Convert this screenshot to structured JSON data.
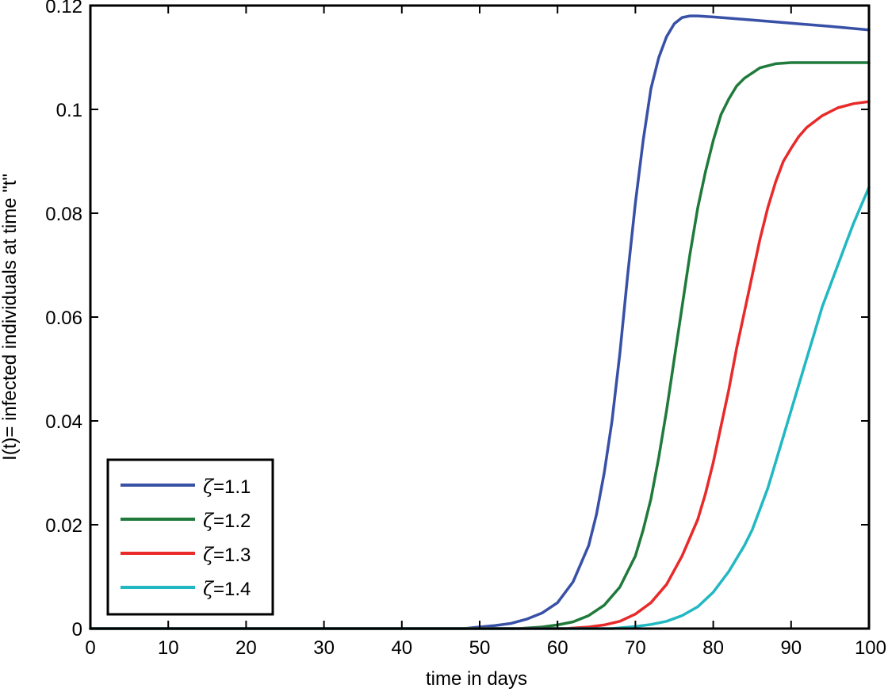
{
  "chart_data": {
    "type": "line",
    "title": "",
    "xlabel": "time in days",
    "ylabel": "I(t)= infected individuals at time \"t\"",
    "xlim": [
      0,
      100
    ],
    "ylim": [
      0,
      0.12
    ],
    "xticks": [
      0,
      10,
      20,
      30,
      40,
      50,
      60,
      70,
      80,
      90,
      100
    ],
    "xtick_labels": [
      "0",
      "10",
      "20",
      "30",
      "40",
      "50",
      "60",
      "70",
      "80",
      "90",
      "100"
    ],
    "yticks": [
      0,
      0.02,
      0.04,
      0.06,
      0.08,
      0.1,
      0.12
    ],
    "ytick_labels": [
      "0",
      "0.02",
      "0.04",
      "0.06",
      "0.08",
      "0.1",
      "0.12"
    ],
    "grid": false,
    "legend_position": "bottom-left",
    "series": [
      {
        "name": "ζ=1.1",
        "symbol": "ζ",
        "value_label": "=1.1",
        "color": "#3850a6",
        "x": [
          0,
          48,
          50,
          52,
          54,
          56,
          58,
          60,
          62,
          64,
          65,
          66,
          67,
          68,
          69,
          70,
          71,
          72,
          73,
          74,
          75,
          76,
          77,
          78,
          80,
          85,
          90,
          95,
          100
        ],
        "y": [
          0,
          0,
          0.0003,
          0.0006,
          0.001,
          0.0018,
          0.003,
          0.005,
          0.009,
          0.016,
          0.022,
          0.03,
          0.04,
          0.053,
          0.068,
          0.082,
          0.094,
          0.104,
          0.11,
          0.114,
          0.1165,
          0.1177,
          0.118,
          0.118,
          0.1178,
          0.1172,
          0.1166,
          0.116,
          0.1153
        ]
      },
      {
        "name": "ζ=1.2",
        "symbol": "ζ",
        "value_label": "=1.2",
        "color": "#1f7a3b",
        "x": [
          0,
          55,
          58,
          60,
          62,
          64,
          66,
          68,
          70,
          71,
          72,
          73,
          74,
          75,
          76,
          77,
          78,
          79,
          80,
          81,
          82,
          83,
          84,
          86,
          88,
          90,
          95,
          100
        ],
        "y": [
          0,
          0,
          0.0003,
          0.0007,
          0.0013,
          0.0025,
          0.0045,
          0.008,
          0.014,
          0.019,
          0.025,
          0.033,
          0.042,
          0.052,
          0.062,
          0.072,
          0.081,
          0.088,
          0.094,
          0.099,
          0.102,
          0.1045,
          0.106,
          0.108,
          0.1088,
          0.109,
          0.109,
          0.109
        ]
      },
      {
        "name": "ζ=1.3",
        "symbol": "ζ",
        "value_label": "=1.3",
        "color": "#e82a2a",
        "x": [
          0,
          61,
          64,
          66,
          68,
          70,
          72,
          74,
          76,
          78,
          79,
          80,
          81,
          82,
          83,
          84,
          85,
          86,
          87,
          88,
          89,
          90,
          91,
          92,
          94,
          96,
          98,
          100
        ],
        "y": [
          0,
          0,
          0.0003,
          0.0007,
          0.0014,
          0.0028,
          0.005,
          0.0085,
          0.014,
          0.021,
          0.026,
          0.032,
          0.039,
          0.046,
          0.054,
          0.061,
          0.068,
          0.075,
          0.081,
          0.086,
          0.09,
          0.0925,
          0.0948,
          0.0965,
          0.0988,
          0.1003,
          0.1011,
          0.1015
        ]
      },
      {
        "name": "ζ=1.4",
        "symbol": "ζ",
        "value_label": "=1.4",
        "color": "#22b8c2",
        "x": [
          0,
          67,
          70,
          72,
          74,
          76,
          78,
          80,
          82,
          84,
          85,
          86,
          87,
          88,
          89,
          90,
          91,
          92,
          93,
          94,
          95,
          96,
          97,
          98,
          99,
          100
        ],
        "y": [
          0,
          0,
          0.0004,
          0.0008,
          0.0014,
          0.0025,
          0.0042,
          0.007,
          0.011,
          0.016,
          0.019,
          0.023,
          0.027,
          0.032,
          0.037,
          0.042,
          0.047,
          0.052,
          0.057,
          0.062,
          0.066,
          0.07,
          0.074,
          0.078,
          0.0815,
          0.085
        ]
      }
    ]
  }
}
